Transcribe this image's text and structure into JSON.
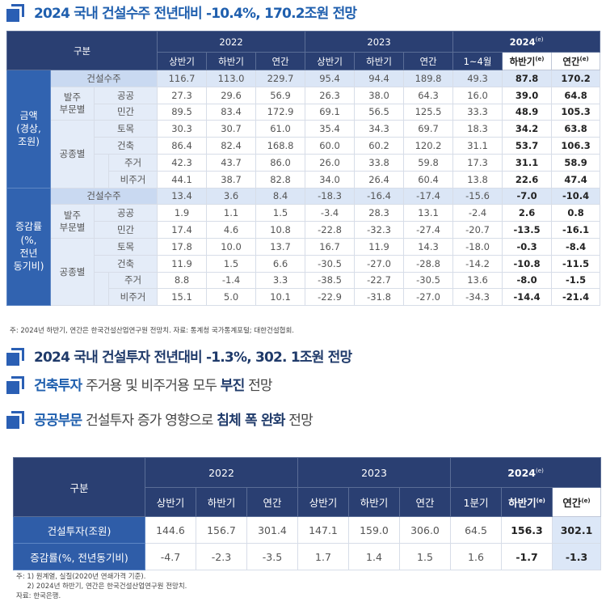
{
  "headings": {
    "h1": "2024 국내 건설수주 전년대비 -10.4%, 170.2조원 전망",
    "h2": "2024 국내 건설투자 전년대비 -1.3%, 302. 1조원 전망",
    "h3": {
      "p1": "건축투자",
      "p2": " 주거용 및 비주거용 모두 ",
      "p3": "부진",
      "p4": " 전망"
    },
    "h4": {
      "p1": "공공부문",
      "p2": " 건설투자 증가 영향으로 ",
      "p3": "침체 폭 완화",
      "p4": " 전망"
    }
  },
  "table1": {
    "corner": "구분",
    "years": [
      "2022",
      "2023",
      "2024"
    ],
    "year_mark": "e",
    "subheads": [
      "상반기",
      "하반기",
      "연간",
      "상반기",
      "하반기",
      "연간",
      "1~4월",
      "하반기",
      "연간"
    ],
    "groups": [
      "금액\n(경상,\n조원)",
      "증감률\n(%,\n전년\n동기비)"
    ],
    "labels": {
      "total": "건설수주",
      "order": "발주\n부문별",
      "work": "공종별",
      "public": "공공",
      "private": "민간",
      "civil": "토목",
      "building": "건축",
      "housing": "주거",
      "nonhousing": "비주거"
    },
    "amount_rows": [
      [
        "116.7",
        "113.0",
        "229.7",
        "95.4",
        "94.4",
        "189.8",
        "49.3",
        "87.8",
        "170.2"
      ],
      [
        "27.3",
        "29.6",
        "56.9",
        "26.3",
        "38.0",
        "64.3",
        "16.0",
        "39.0",
        "64.8"
      ],
      [
        "89.5",
        "83.4",
        "172.9",
        "69.1",
        "56.5",
        "125.5",
        "33.3",
        "48.9",
        "105.3"
      ],
      [
        "30.3",
        "30.7",
        "61.0",
        "35.4",
        "34.3",
        "69.7",
        "18.3",
        "34.2",
        "63.8"
      ],
      [
        "86.4",
        "82.4",
        "168.8",
        "60.0",
        "60.2",
        "120.2",
        "31.1",
        "53.7",
        "106.3"
      ],
      [
        "42.3",
        "43.7",
        "86.0",
        "26.0",
        "33.8",
        "59.8",
        "17.3",
        "31.1",
        "58.9"
      ],
      [
        "44.1",
        "38.7",
        "82.8",
        "34.0",
        "26.4",
        "60.4",
        "13.8",
        "22.6",
        "47.4"
      ]
    ],
    "rate_rows": [
      [
        "13.4",
        "3.6",
        "8.4",
        "-18.3",
        "-16.4",
        "-17.4",
        "-15.6",
        "-7.0",
        "-10.4"
      ],
      [
        "1.9",
        "1.1",
        "1.5",
        "-3.4",
        "28.3",
        "13.1",
        "-2.4",
        "2.6",
        "0.8"
      ],
      [
        "17.4",
        "4.6",
        "10.8",
        "-22.8",
        "-32.3",
        "-27.4",
        "-20.7",
        "-13.5",
        "-16.1"
      ],
      [
        "17.8",
        "10.0",
        "13.7",
        "16.7",
        "11.9",
        "14.3",
        "-18.0",
        "-0.3",
        "-8.4"
      ],
      [
        "11.9",
        "1.5",
        "6.6",
        "-30.5",
        "-27.0",
        "-28.8",
        "-14.2",
        "-10.8",
        "-11.5"
      ],
      [
        "8.8",
        "-1.4",
        "3.3",
        "-38.5",
        "-22.7",
        "-30.5",
        "13.6",
        "-8.0",
        "-1.5"
      ],
      [
        "15.1",
        "5.0",
        "10.1",
        "-22.9",
        "-31.8",
        "-27.0",
        "-34.3",
        "-14.4",
        "-21.4"
      ]
    ],
    "note": "주: 2024년 하반기, 연간은 한국건설산업연구원 전망치.   자료: 통계청 국가통계포털; 대한건설협회."
  },
  "table2": {
    "corner": "구분",
    "years": [
      "2022",
      "2023",
      "2024"
    ],
    "year_mark": "e",
    "subheads": [
      "상반기",
      "하반기",
      "연간",
      "상반기",
      "하반기",
      "연간",
      "1분기",
      "하반기",
      "연간"
    ],
    "rows": [
      {
        "label": "건설투자(조원)",
        "values": [
          "144.6",
          "156.7",
          "301.4",
          "147.1",
          "159.0",
          "306.0",
          "64.5",
          "156.3",
          "302.1"
        ]
      },
      {
        "label": "증감률(%, 전년동기비)",
        "values": [
          "-4.7",
          "-2.3",
          "-3.5",
          "1.7",
          "1.4",
          "1.5",
          "1.6",
          "-1.7",
          "-1.3"
        ]
      }
    ],
    "notes": [
      "주: 1) 원계열, 실질(2020년 연쇄가격 기준).",
      "     2) 2024년 하반기, 연간은 한국건설산업연구원 전망치.",
      "자료: 한국은행."
    ]
  },
  "colors": {
    "navy": "#2a3f72",
    "blue": "#3163b0",
    "light_blue": "#e4ecf8"
  },
  "icon": "blue-square-arrow-icon"
}
